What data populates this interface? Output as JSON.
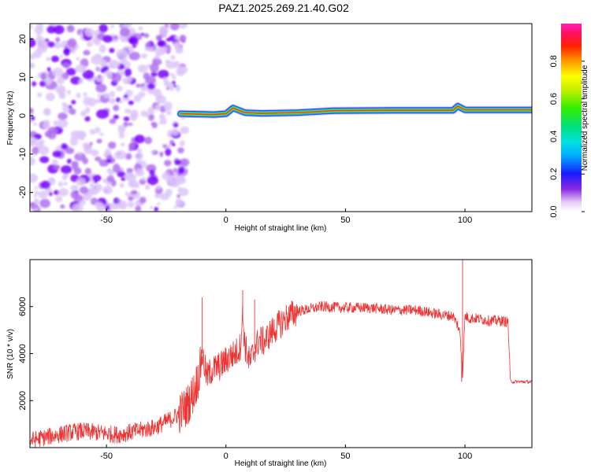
{
  "title": "PAZ1.2025.269.21.40.G02",
  "chart_data": [
    {
      "type": "heatmap",
      "title": "PAZ1.2025.269.21.40.G02",
      "xlabel": "Height of straight line (km)",
      "ylabel": "Frequency (Hz)",
      "xlim": [
        -82,
        128
      ],
      "ylim": [
        -25,
        24
      ],
      "x_ticks": [
        "-50",
        "0",
        "50",
        "100"
      ],
      "y_ticks": [
        "-20",
        "-10",
        "0",
        "10",
        "20"
      ],
      "colorbar": {
        "label": "Normalized spectral amplitude",
        "range": [
          0,
          1
        ],
        "ticks": [
          "0.0",
          "0.2",
          "0.4",
          "0.6",
          "0.8"
        ]
      },
      "features": {
        "noise_region_x": [
          -82,
          -19
        ],
        "signal_start_x": -20,
        "signal_frequency_hz": [
          {
            "x": -19,
            "f": 0.5
          },
          {
            "x": -5,
            "f": 0.3
          },
          {
            "x": 0,
            "f": 0.5
          },
          {
            "x": 3,
            "f": 2.0
          },
          {
            "x": 8,
            "f": 0.8
          },
          {
            "x": 15,
            "f": 0.6
          },
          {
            "x": 30,
            "f": 0.8
          },
          {
            "x": 45,
            "f": 1.3
          },
          {
            "x": 70,
            "f": 1.4
          },
          {
            "x": 95,
            "f": 1.4
          },
          {
            "x": 97,
            "f": 2.5
          },
          {
            "x": 100,
            "f": 1.5
          },
          {
            "x": 128,
            "f": 1.5
          }
        ]
      }
    },
    {
      "type": "line",
      "xlabel": "Height of straight line (km)",
      "ylabel": "SNR (10 * v/v)",
      "xlim": [
        -82,
        128
      ],
      "ylim": [
        0,
        8000
      ],
      "x_ticks": [
        "-50",
        "0",
        "50",
        "100"
      ],
      "y_ticks": [
        "2000",
        "4000",
        "6000"
      ],
      "series": [
        {
          "color": "#ee3333",
          "x": [
            -82,
            -75,
            -70,
            -65,
            -60,
            -55,
            -50,
            -45,
            -40,
            -35,
            -30,
            -25,
            -20,
            -17,
            -15,
            -13,
            -11,
            -10,
            -8,
            -6,
            -4,
            -2,
            0,
            2,
            4,
            6,
            7,
            8,
            10,
            12,
            14,
            16,
            18,
            20,
            25,
            30,
            35,
            40,
            50,
            60,
            70,
            80,
            90,
            95,
            97,
            98,
            99,
            100,
            102,
            105,
            110,
            115,
            118,
            119,
            120,
            125,
            128
          ],
          "y": [
            300,
            450,
            550,
            650,
            700,
            650,
            600,
            550,
            650,
            750,
            850,
            1100,
            1400,
            1700,
            2000,
            2500,
            3200,
            4000,
            3000,
            3300,
            3400,
            3500,
            3700,
            3900,
            4000,
            4300,
            5600,
            4300,
            3600,
            4200,
            4600,
            4500,
            4800,
            5000,
            5500,
            5800,
            5900,
            6000,
            5950,
            5950,
            5850,
            5850,
            5650,
            5600,
            5200,
            4800,
            3000,
            5600,
            5500,
            5500,
            5400,
            5400,
            5350,
            2850,
            2800,
            2800,
            2800
          ]
        }
      ],
      "annotations": {
        "spikes": [
          {
            "x": -10,
            "y": 6400
          },
          {
            "x": 7,
            "y": 6700
          },
          {
            "x": 12,
            "y": 6300
          },
          {
            "x": 99,
            "y": 8000
          },
          {
            "x": 98.6,
            "y": 2800
          }
        ]
      }
    }
  ]
}
